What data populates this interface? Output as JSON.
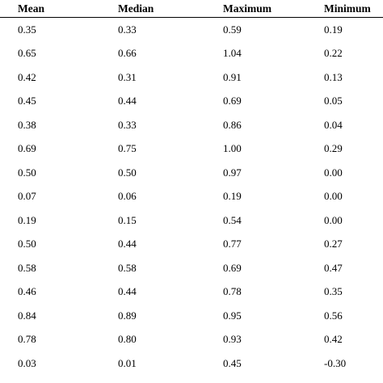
{
  "table": {
    "headers": [
      "Mean",
      "Median",
      "Maximum",
      "Minimum"
    ],
    "rows": [
      [
        "0.35",
        "0.33",
        "0.59",
        "0.19"
      ],
      [
        "0.65",
        "0.66",
        "1.04",
        "0.22"
      ],
      [
        "0.42",
        "0.31",
        "0.91",
        "0.13"
      ],
      [
        "0.45",
        "0.44",
        "0.69",
        "0.05"
      ],
      [
        "0.38",
        "0.33",
        "0.86",
        "0.04"
      ],
      [
        "0.69",
        "0.75",
        "1.00",
        "0.29"
      ],
      [
        "0.50",
        "0.50",
        "0.97",
        "0.00"
      ],
      [
        "0.07",
        "0.06",
        "0.19",
        "0.00"
      ],
      [
        "0.19",
        "0.15",
        "0.54",
        "0.00"
      ],
      [
        "0.50",
        "0.44",
        "0.77",
        "0.27"
      ],
      [
        "0.58",
        "0.58",
        "0.69",
        "0.47"
      ],
      [
        "0.46",
        "0.44",
        "0.78",
        "0.35"
      ],
      [
        "0.84",
        "0.89",
        "0.95",
        "0.56"
      ],
      [
        "0.78",
        "0.80",
        "0.93",
        "0.42"
      ],
      [
        "0.03",
        "0.01",
        "0.45",
        "-0.30"
      ]
    ]
  }
}
